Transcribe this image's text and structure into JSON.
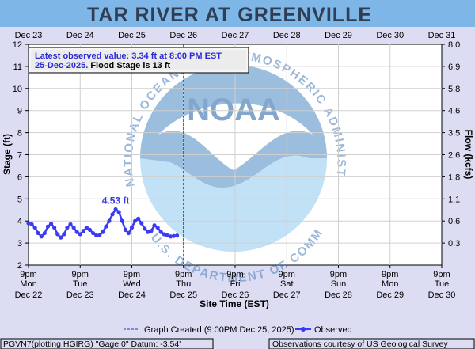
{
  "header": {
    "title": "TAR RIVER AT GREENVILLE"
  },
  "notice": {
    "line1": "Latest observed value: 3.34 ft at 8:00 PM EST",
    "line2_date": "25-Dec-2025.",
    "line2_rest": " Flood Stage is 13 ft"
  },
  "watermark": {
    "logo_text": "NOAA",
    "ring_text": "NATIONAL OCEANIC AND ATMOSPHERIC ADMINISTRATION",
    "ring_text_bottom": "U.S. DEPARTMENT OF COMMERCE"
  },
  "legend": {
    "created": "Graph Created (9:00PM Dec 25, 2025)",
    "observed": "Observed"
  },
  "footer": {
    "left": "PGVN7(plotting HGIRG) \"Gage 0\" Datum: -3.54'",
    "right": "Observations courtesy of US Geological Survey"
  },
  "colors": {
    "background": "#dcdcf2",
    "plot": "#ffffff",
    "grid": "#d0d0d0",
    "observed": "#3b3bf0",
    "title_banner": "#7fb6e8",
    "notice_text": "#2b2bd8"
  },
  "chart_data": {
    "type": "line",
    "title": "TAR RIVER AT GREENVILLE",
    "xlabel": "Site Time (EST)",
    "ylabel": "Stage (ft)",
    "y2label": "Flow (kcfs)",
    "ylim": [
      2,
      12
    ],
    "yticks": [
      "2",
      "3",
      "4",
      "5",
      "6",
      "7",
      "8",
      "9",
      "10",
      "11",
      "12"
    ],
    "y2ticks": [
      "0.3",
      "0.6",
      "1.1",
      "1.8",
      "2.6",
      "3.5",
      "4.6",
      "5.8",
      "6.9",
      "8.0"
    ],
    "top_ticks": [
      "Dec 23",
      "Dec 24",
      "Dec 25",
      "Dec 26",
      "Dec 27",
      "Dec 28",
      "Dec 29",
      "Dec 30",
      "Dec 31"
    ],
    "bottom_ticks": [
      {
        "time": "9pm",
        "day": "Mon",
        "date": "Dec 22"
      },
      {
        "time": "9pm",
        "day": "Tue",
        "date": "Dec 23"
      },
      {
        "time": "9pm",
        "day": "Wed",
        "date": "Dec 24"
      },
      {
        "time": "9pm",
        "day": "Thu",
        "date": "Dec 25"
      },
      {
        "time": "9pm",
        "day": "Fri",
        "date": "Dec 26"
      },
      {
        "time": "9pm",
        "day": "Sat",
        "date": "Dec 27"
      },
      {
        "time": "9pm",
        "day": "Sun",
        "date": "Dec 28"
      },
      {
        "time": "9pm",
        "day": "Mon",
        "date": "Dec 29"
      },
      {
        "time": "9pm",
        "day": "Tue",
        "date": "Dec 30"
      }
    ],
    "grid": true,
    "graph_created_hours": 24,
    "peak_label": "4.53 ft",
    "peak_label_hours": 7.2,
    "series": [
      {
        "name": "Observed",
        "x_hours": [
          0,
          1,
          2,
          3,
          4,
          5,
          6,
          7,
          8,
          9,
          10,
          11,
          12,
          13,
          14,
          15,
          16,
          17,
          18,
          19,
          20,
          21,
          22,
          23
        ],
        "x_hours_detail": "hours after 9pm Mon Dec 22; 1 unit = 3 h",
        "x": [
          0,
          0.5,
          1,
          1.5,
          2,
          2.5,
          3,
          3.5,
          4,
          4.5,
          5,
          5.5,
          6,
          6.5,
          7,
          7.5,
          8,
          8.5,
          9,
          9.5,
          10,
          10.5,
          11,
          11.5,
          12,
          12.5,
          13,
          13.5,
          14,
          14.5,
          15,
          15.5,
          16,
          16.5,
          17,
          17.5,
          18,
          18.5,
          19,
          19.5,
          20,
          20.5,
          21,
          21.5,
          22,
          22.5,
          23
        ],
        "y": [
          3.9,
          3.85,
          3.7,
          3.45,
          3.3,
          3.45,
          3.75,
          3.88,
          3.7,
          3.4,
          3.25,
          3.4,
          3.7,
          3.85,
          3.7,
          3.5,
          3.4,
          3.55,
          3.7,
          3.6,
          3.45,
          3.35,
          3.35,
          3.5,
          3.75,
          4.0,
          4.3,
          4.53,
          4.4,
          4.0,
          3.6,
          3.45,
          3.7,
          4.0,
          4.1,
          3.9,
          3.65,
          3.5,
          3.55,
          3.8,
          3.7,
          3.5,
          3.4,
          3.35,
          3.3,
          3.32,
          3.34
        ]
      }
    ]
  }
}
